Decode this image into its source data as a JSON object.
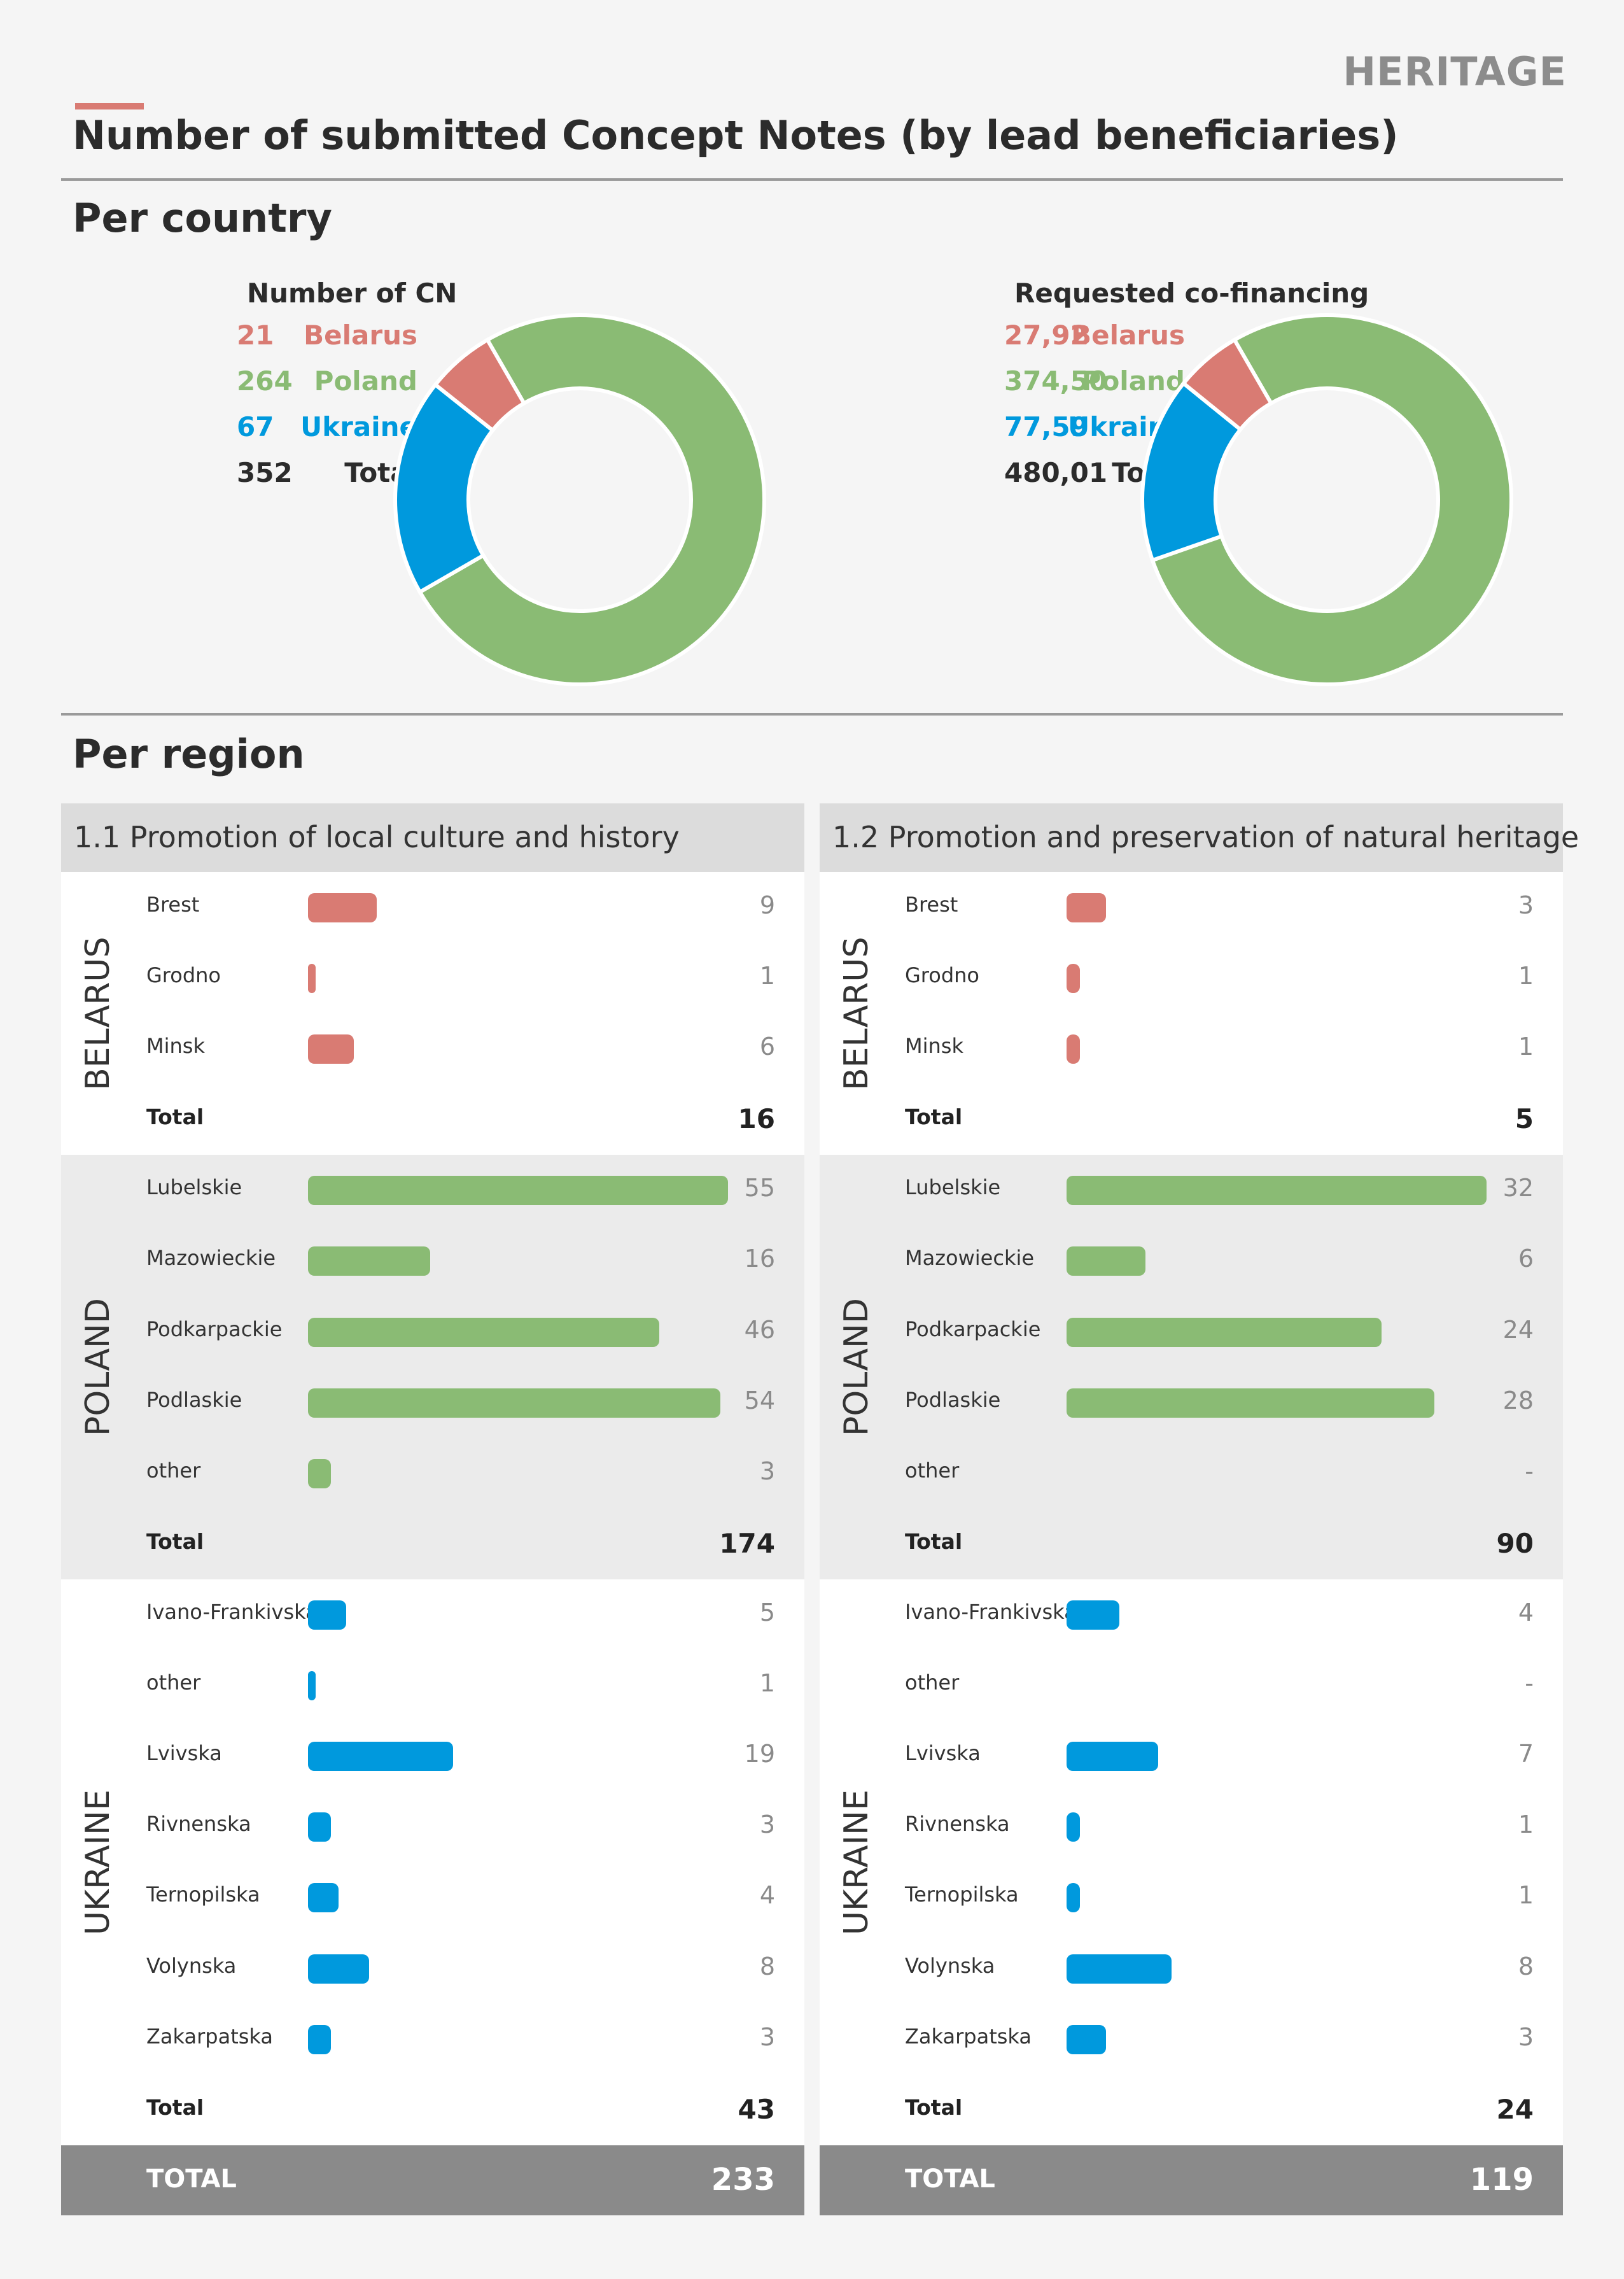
{
  "header": {
    "section_tag": "HERITAGE",
    "title": "Number of submitted Concept Notes (by lead beneficiaries)",
    "accent_color": "#d97b73"
  },
  "colors": {
    "belarus": "#d97b73",
    "poland": "#8abb74",
    "ukraine": "#0099dd",
    "total": "#2b2b2b"
  },
  "per_country": {
    "heading": "Per country",
    "panels": [
      {
        "heading": "Number of CN",
        "rows": [
          {
            "name": "Belarus",
            "value": "21"
          },
          {
            "name": "Poland",
            "value": "264"
          },
          {
            "name": "Ukraine",
            "value": "67"
          },
          {
            "name": "Total",
            "value": "352"
          }
        ]
      },
      {
        "heading": "Requested co-financing",
        "rows": [
          {
            "name": "Belarus",
            "value": "27,92"
          },
          {
            "name": "Poland",
            "value": "374,50"
          },
          {
            "name": "Ukraine",
            "value": "77,59"
          },
          {
            "name": "Total",
            "value": "480,01"
          }
        ]
      }
    ]
  },
  "per_region": {
    "heading": "Per region",
    "columns": [
      {
        "heading": "1.1  Promotion of local culture and history",
        "groups": [
          {
            "country": "BELARUS",
            "total_label": "Total",
            "total": "16",
            "rows": [
              {
                "name": "Brest",
                "value": "9"
              },
              {
                "name": "Grodno",
                "value": "1"
              },
              {
                "name": "Minsk",
                "value": "6"
              }
            ]
          },
          {
            "country": "POLAND",
            "total_label": "Total",
            "total": "174",
            "rows": [
              {
                "name": "Lubelskie",
                "value": "55"
              },
              {
                "name": "Mazowieckie",
                "value": "16"
              },
              {
                "name": "Podkarpackie",
                "value": "46"
              },
              {
                "name": "Podlaskie",
                "value": "54"
              },
              {
                "name": "other",
                "value": "3"
              }
            ]
          },
          {
            "country": "UKRAINE",
            "total_label": "Total",
            "total": "43",
            "rows": [
              {
                "name": "Ivano-Frankivska",
                "value": "5"
              },
              {
                "name": "other",
                "value": "1"
              },
              {
                "name": "Lvivska",
                "value": "19"
              },
              {
                "name": "Rivnenska",
                "value": "3"
              },
              {
                "name": "Ternopilska",
                "value": "4"
              },
              {
                "name": "Volynska",
                "value": "8"
              },
              {
                "name": "Zakarpatska",
                "value": "3"
              }
            ]
          }
        ],
        "grand_label": "TOTAL",
        "grand_total": "233"
      },
      {
        "heading": "1.2  Promotion and preservation of natural heritage",
        "groups": [
          {
            "country": "BELARUS",
            "total_label": "Total",
            "total": "5",
            "rows": [
              {
                "name": "Brest",
                "value": "3"
              },
              {
                "name": "Grodno",
                "value": "1"
              },
              {
                "name": "Minsk",
                "value": "1"
              }
            ]
          },
          {
            "country": "POLAND",
            "total_label": "Total",
            "total": "90",
            "rows": [
              {
                "name": "Lubelskie",
                "value": "32"
              },
              {
                "name": "Mazowieckie",
                "value": "6"
              },
              {
                "name": "Podkarpackie",
                "value": "24"
              },
              {
                "name": "Podlaskie",
                "value": "28"
              },
              {
                "name": "other",
                "value": "-"
              }
            ]
          },
          {
            "country": "UKRAINE",
            "total_label": "Total",
            "total": "24",
            "rows": [
              {
                "name": "Ivano-Frankivska",
                "value": "4"
              },
              {
                "name": "other",
                "value": "-"
              },
              {
                "name": "Lvivska",
                "value": "7"
              },
              {
                "name": "Rivnenska",
                "value": "1"
              },
              {
                "name": "Ternopilska",
                "value": "1"
              },
              {
                "name": "Volynska",
                "value": "8"
              },
              {
                "name": "Zakarpatska",
                "value": "3"
              }
            ]
          }
        ],
        "grand_label": "TOTAL",
        "grand_total": "119"
      }
    ]
  },
  "chart_data": [
    {
      "type": "pie",
      "title": "Number of CN",
      "categories": [
        "Belarus",
        "Poland",
        "Ukraine"
      ],
      "values": [
        21,
        264,
        67
      ]
    },
    {
      "type": "pie",
      "title": "Requested co-financing",
      "categories": [
        "Belarus",
        "Poland",
        "Ukraine"
      ],
      "values": [
        27.92,
        374.5,
        77.59
      ]
    },
    {
      "type": "bar",
      "title": "1.1  Promotion of local culture and history",
      "categories": [
        "Brest",
        "Grodno",
        "Minsk",
        "Lubelskie",
        "Mazowieckie",
        "Podkarpackie",
        "Podlaskie",
        "other",
        "Ivano-Frankivska",
        "other",
        "Lvivska",
        "Rivnenska",
        "Ternopilska",
        "Volynska",
        "Zakarpatska"
      ],
      "values": [
        9,
        1,
        6,
        55,
        16,
        46,
        54,
        3,
        5,
        1,
        19,
        3,
        4,
        8,
        3
      ]
    },
    {
      "type": "bar",
      "title": "1.2  Promotion and preservation of natural heritage",
      "categories": [
        "Brest",
        "Grodno",
        "Minsk",
        "Lubelskie",
        "Mazowieckie",
        "Podkarpackie",
        "Podlaskie",
        "other",
        "Ivano-Frankivska",
        "other",
        "Lvivska",
        "Rivnenska",
        "Ternopilska",
        "Volynska",
        "Zakarpatska"
      ],
      "values": [
        3,
        1,
        1,
        32,
        6,
        24,
        28,
        0,
        4,
        0,
        7,
        1,
        1,
        8,
        3
      ]
    }
  ]
}
